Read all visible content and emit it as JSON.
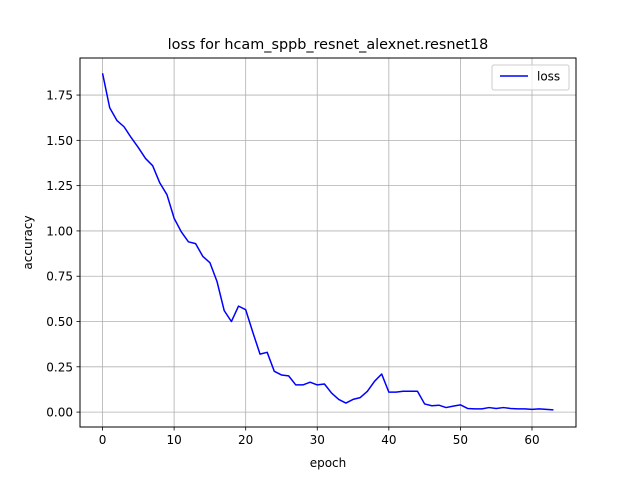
{
  "chart_data": {
    "type": "line",
    "title": "loss for hcam_sppb_resnet_alexnet.resnet18",
    "xlabel": "epoch",
    "ylabel": "accuracy",
    "xlim": [
      -3.15,
      66.15
    ],
    "ylim": [
      -0.0823,
      1.9545
    ],
    "xticks": [
      0,
      10,
      20,
      30,
      40,
      50,
      60
    ],
    "yticks": [
      0.0,
      0.25,
      0.5,
      0.75,
      1.0,
      1.25,
      1.5,
      1.75
    ],
    "ytick_labels": [
      "0.00",
      "0.25",
      "0.50",
      "0.75",
      "1.00",
      "1.25",
      "1.50",
      "1.75"
    ],
    "grid": true,
    "legend": "top-right",
    "series": [
      {
        "name": "loss",
        "color": "#0000ff",
        "x": [
          0,
          1,
          2,
          3,
          4,
          5,
          6,
          7,
          8,
          9,
          10,
          11,
          12,
          13,
          14,
          15,
          16,
          17,
          18,
          19,
          20,
          21,
          22,
          23,
          24,
          25,
          26,
          27,
          28,
          29,
          30,
          31,
          32,
          33,
          34,
          35,
          36,
          37,
          38,
          39,
          40,
          41,
          42,
          43,
          44,
          45,
          46,
          47,
          48,
          49,
          50,
          51,
          52,
          53,
          54,
          55,
          56,
          57,
          58,
          59,
          60,
          61,
          62,
          63
        ],
        "y": [
          1.87,
          1.68,
          1.61,
          1.575,
          1.515,
          1.46,
          1.4,
          1.36,
          1.265,
          1.2,
          1.07,
          0.995,
          0.94,
          0.93,
          0.86,
          0.825,
          0.72,
          0.56,
          0.5,
          0.585,
          0.565,
          0.44,
          0.32,
          0.33,
          0.225,
          0.205,
          0.2,
          0.15,
          0.15,
          0.165,
          0.15,
          0.155,
          0.105,
          0.07,
          0.05,
          0.07,
          0.08,
          0.115,
          0.17,
          0.21,
          0.11,
          0.11,
          0.115,
          0.115,
          0.115,
          0.045,
          0.035,
          0.038,
          0.025,
          0.033,
          0.04,
          0.02,
          0.018,
          0.018,
          0.025,
          0.02,
          0.025,
          0.02,
          0.018,
          0.018,
          0.015,
          0.018,
          0.015,
          0.012
        ]
      }
    ]
  }
}
